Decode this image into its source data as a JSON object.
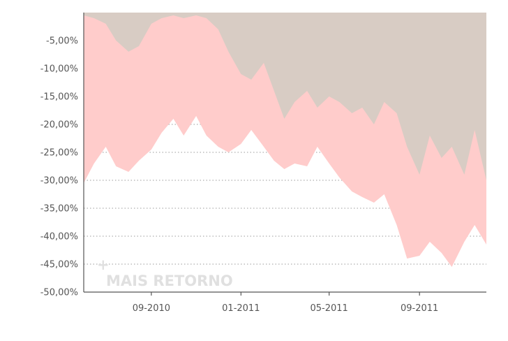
{
  "chart_data": {
    "type": "area",
    "y_tick_labels": [
      "-5,00%",
      "-10,00%",
      "-15,00%",
      "-20,00%",
      "-25,00%",
      "-30,00%",
      "-35,00%",
      "-40,00%",
      "-45,00%",
      "-50,00%"
    ],
    "y_ticks": [
      -5,
      -10,
      -15,
      -20,
      -25,
      -30,
      -35,
      -40,
      -45,
      -50
    ],
    "x_tick_labels": [
      "09-2010",
      "01-2011",
      "05-2011",
      "09-2011"
    ],
    "x_ticks": [
      "2010-09-01",
      "2011-01-01",
      "2011-05-01",
      "2011-09-01"
    ],
    "ylim": [
      -50,
      0
    ],
    "xlim": [
      "2010-06-01",
      "2011-12-01"
    ],
    "grid": true,
    "colors": {
      "series_a": "#ffcccb",
      "series_b": "#d8ccc4",
      "axis": "#555555",
      "watermark": "#e0e0e0"
    },
    "series": [
      {
        "color": "#ffcccb",
        "x": [
          "2010-06-01",
          "2010-06-15",
          "2010-07-01",
          "2010-07-15",
          "2010-08-01",
          "2010-08-15",
          "2010-09-01",
          "2010-09-15",
          "2010-10-01",
          "2010-10-15",
          "2010-11-01",
          "2010-11-15",
          "2010-12-01",
          "2010-12-15",
          "2011-01-01",
          "2011-01-15",
          "2011-02-01",
          "2011-02-15",
          "2011-03-01",
          "2011-03-15",
          "2011-04-01",
          "2011-04-15",
          "2011-05-01",
          "2011-05-15",
          "2011-06-01",
          "2011-06-15",
          "2011-07-01",
          "2011-07-15",
          "2011-08-01",
          "2011-08-15",
          "2011-09-01",
          "2011-09-15",
          "2011-10-01",
          "2011-10-15",
          "2011-11-01",
          "2011-11-15",
          "2011-12-01"
        ],
        "values": [
          -30.5,
          -27,
          -24,
          -27.5,
          -28.5,
          -26.5,
          -24.5,
          -21.5,
          -19,
          -22,
          -18.5,
          -22,
          -24,
          -25,
          -23.5,
          -21,
          -24,
          -26.5,
          -28,
          -27,
          -27.5,
          -24,
          -27,
          -29.5,
          -32,
          -33,
          -34,
          -32.5,
          -38,
          -44,
          -43.5,
          -41,
          -43,
          -45.5,
          -41,
          -38,
          -41.5
        ]
      },
      {
        "color": "#d8ccc4",
        "x": [
          "2010-06-01",
          "2010-06-15",
          "2010-07-01",
          "2010-07-15",
          "2010-08-01",
          "2010-08-15",
          "2010-09-01",
          "2010-09-15",
          "2010-10-01",
          "2010-10-15",
          "2010-11-01",
          "2010-11-15",
          "2010-12-01",
          "2010-12-15",
          "2011-01-01",
          "2011-01-15",
          "2011-02-01",
          "2011-02-15",
          "2011-03-01",
          "2011-03-15",
          "2011-04-01",
          "2011-04-15",
          "2011-05-01",
          "2011-05-15",
          "2011-06-01",
          "2011-06-15",
          "2011-07-01",
          "2011-07-15",
          "2011-08-01",
          "2011-08-15",
          "2011-09-01",
          "2011-09-15",
          "2011-10-01",
          "2011-10-15",
          "2011-11-01",
          "2011-11-15",
          "2011-12-01"
        ],
        "values": [
          -0.5,
          -1,
          -2,
          -5,
          -7,
          -6,
          -2,
          -1,
          -0.5,
          -1,
          -0.5,
          -1,
          -3,
          -7,
          -11,
          -12,
          -9,
          -14,
          -19,
          -16,
          -14,
          -17,
          -15,
          -16,
          -18,
          -17,
          -20,
          -16,
          -18,
          -24,
          -29,
          -22,
          -26,
          -24,
          -29,
          -21,
          -30
        ]
      }
    ],
    "watermark": "MAIS RETORNO",
    "watermark_mark": "+"
  }
}
